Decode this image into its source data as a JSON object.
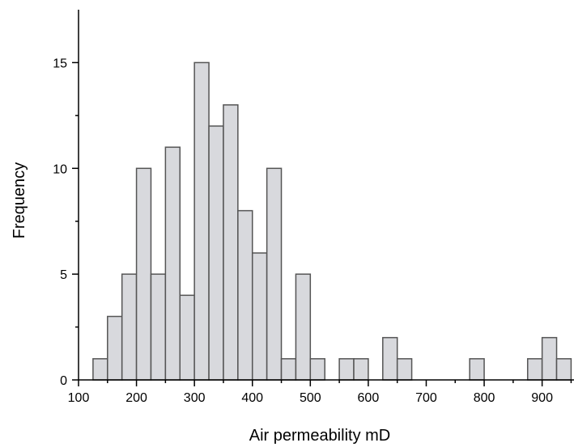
{
  "chart_data": {
    "type": "bar",
    "subtype": "histogram",
    "xlabel": "Air permeability mD",
    "ylabel": "Frequency",
    "xlim": [
      100,
      955
    ],
    "ylim": [
      0,
      17.5
    ],
    "xticks": [
      100,
      200,
      300,
      400,
      500,
      600,
      700,
      800,
      900
    ],
    "yticks": [
      0,
      5,
      10,
      15
    ],
    "bin_width": 25,
    "bins_start": [
      125,
      150,
      175,
      200,
      225,
      250,
      275,
      300,
      325,
      350,
      375,
      400,
      425,
      450,
      475,
      500,
      525,
      550,
      575,
      600,
      625,
      650,
      675,
      700,
      725,
      750,
      775,
      800,
      825,
      850,
      875,
      900,
      925
    ],
    "values": [
      1,
      3,
      5,
      10,
      5,
      11,
      4,
      15,
      12,
      13,
      8,
      6,
      10,
      1,
      5,
      1,
      0,
      1,
      1,
      0,
      2,
      1,
      0,
      0,
      0,
      0,
      1,
      0,
      0,
      0,
      1,
      2,
      1
    ],
    "bar_color": "#d8d9dd",
    "edge_color": "#555555"
  }
}
